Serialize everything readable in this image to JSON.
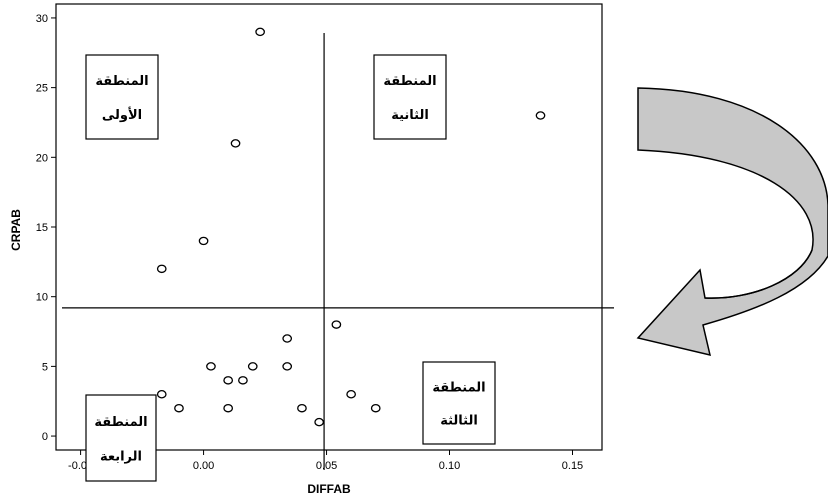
{
  "chart_data": {
    "type": "scatter",
    "title": "",
    "xlabel": "DIFFAB",
    "ylabel": "CRPAB",
    "xlim": [
      -0.06,
      0.162
    ],
    "ylim": [
      -1,
      31
    ],
    "x_ticks": [
      "-0.05",
      "0.00",
      "0.05",
      "0.10",
      "0.15"
    ],
    "x_tick_values": [
      -0.05,
      0.0,
      0.05,
      0.1,
      0.15
    ],
    "y_ticks": [
      "0",
      "5",
      "10",
      "15",
      "20",
      "25",
      "30"
    ],
    "y_tick_values": [
      0,
      5,
      10,
      15,
      20,
      25,
      30
    ],
    "grid": false,
    "reference_lines": {
      "x": 0.049,
      "y": 9.2
    },
    "points": [
      {
        "x": 0.023,
        "y": 29
      },
      {
        "x": 0.137,
        "y": 23
      },
      {
        "x": 0.013,
        "y": 21
      },
      {
        "x": 0.0,
        "y": 14
      },
      {
        "x": -0.017,
        "y": 12
      },
      {
        "x": 0.054,
        "y": 8
      },
      {
        "x": 0.034,
        "y": 7
      },
      {
        "x": 0.003,
        "y": 5
      },
      {
        "x": 0.02,
        "y": 5
      },
      {
        "x": 0.034,
        "y": 5
      },
      {
        "x": 0.01,
        "y": 4
      },
      {
        "x": 0.016,
        "y": 4
      },
      {
        "x": -0.017,
        "y": 3
      },
      {
        "x": 0.06,
        "y": 3
      },
      {
        "x": -0.01,
        "y": 2
      },
      {
        "x": 0.01,
        "y": 2
      },
      {
        "x": 0.04,
        "y": 2
      },
      {
        "x": 0.07,
        "y": 2
      },
      {
        "x": 0.047,
        "y": 1
      }
    ],
    "zones": [
      {
        "line1": "المنطقة",
        "line2": "الأولى"
      },
      {
        "line1": "المنطقة",
        "line2": "الثانية"
      },
      {
        "line1": "المنطقة",
        "line2": "الثالثة"
      },
      {
        "line1": "المنطقة",
        "line2": "الرابعة"
      }
    ]
  },
  "colors": {
    "arrow_fill": "#c8c8c8",
    "axis": "#000000",
    "background": "#ffffff"
  },
  "icons": {
    "arrow": "curved-arrow-icon"
  }
}
